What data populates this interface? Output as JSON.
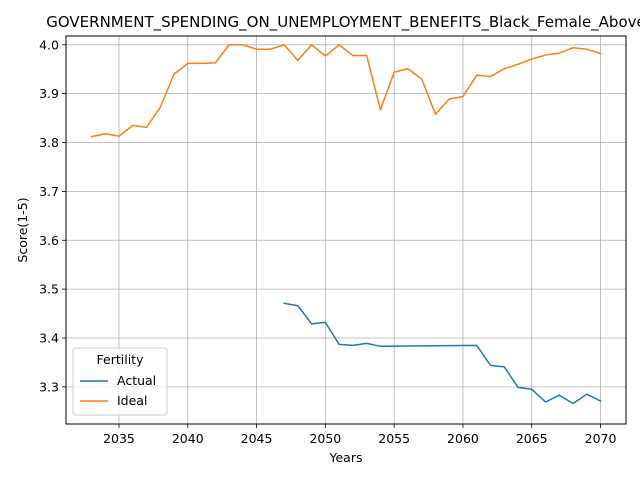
{
  "chart_data": {
    "type": "line",
    "title": "GOVERNMENT_SPENDING_ON_UNEMPLOYMENT_BENEFITS_Black_Female_Above",
    "xlabel": "Years",
    "ylabel": "Score(1-5)",
    "xlim": [
      2031.15,
      2071.85
    ],
    "ylim": [
      3.224,
      4.018
    ],
    "xticks": [
      2035,
      2040,
      2045,
      2050,
      2055,
      2060,
      2065,
      2070
    ],
    "yticks": [
      3.3,
      3.4,
      3.5,
      3.6,
      3.7,
      3.8,
      3.9,
      4.0
    ],
    "ytick_labels": [
      "3.3",
      "3.4",
      "3.5",
      "3.6",
      "3.7",
      "3.8",
      "3.9",
      "4.0"
    ],
    "grid": true,
    "legend": {
      "title": "Fertility",
      "placement": "lower left"
    },
    "series": [
      {
        "name": "Actual",
        "color": "#1f77b4",
        "x": [
          2047,
          2048,
          2049,
          2050,
          2051,
          2052,
          2053,
          2054,
          2061,
          2062,
          2063,
          2064,
          2065,
          2066,
          2067,
          2068,
          2069,
          2070
        ],
        "y": [
          3.471,
          3.466,
          3.429,
          3.432,
          3.387,
          3.385,
          3.389,
          3.383,
          3.385,
          3.344,
          3.341,
          3.299,
          3.295,
          3.269,
          3.283,
          3.266,
          3.285,
          3.271
        ]
      },
      {
        "name": "Ideal",
        "color": "#ff7f0e",
        "x": [
          2033,
          2034,
          2035,
          2036,
          2037,
          2038,
          2039,
          2040,
          2041,
          2042,
          2043,
          2044,
          2045,
          2046,
          2047,
          2048,
          2049,
          2050,
          2051,
          2052,
          2053,
          2054,
          2055,
          2056,
          2057,
          2058,
          2059,
          2060,
          2061,
          2062,
          2063,
          2064,
          2065,
          2066,
          2067,
          2068,
          2069,
          2070
        ],
        "y": [
          3.812,
          3.818,
          3.813,
          3.835,
          3.831,
          3.872,
          3.94,
          3.962,
          3.962,
          3.963,
          4.0,
          4.0,
          3.991,
          3.991,
          4.0,
          3.968,
          4.0,
          3.977,
          4.0,
          3.978,
          3.978,
          3.867,
          3.944,
          3.951,
          3.93,
          3.858,
          3.889,
          3.894,
          3.938,
          3.935,
          3.951,
          3.96,
          3.971,
          3.979,
          3.983,
          3.994,
          3.991,
          3.982
        ]
      }
    ]
  }
}
